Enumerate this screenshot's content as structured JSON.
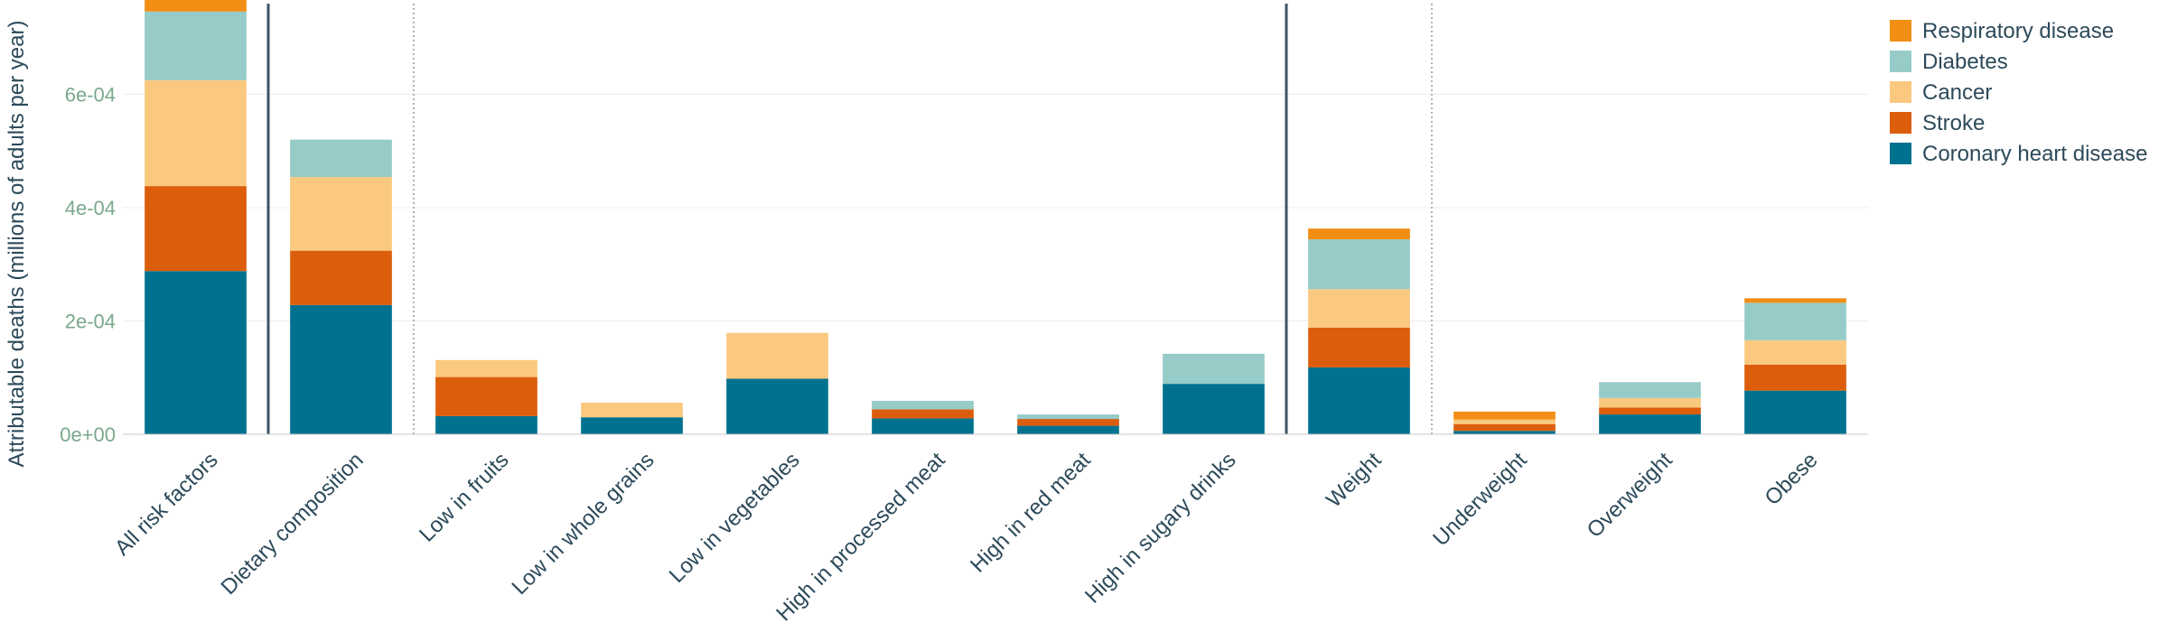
{
  "chart_data": {
    "type": "bar",
    "stacked": true,
    "ylabel": "Attributable deaths (millions of adults per year)",
    "ylim": [
      0,
      0.00076
    ],
    "yticks": [
      {
        "value": 0,
        "label": "0e+00"
      },
      {
        "value": 0.0002,
        "label": "2e-04"
      },
      {
        "value": 0.0004,
        "label": "4e-04"
      },
      {
        "value": 0.0006,
        "label": "6e-04"
      }
    ],
    "grid": true,
    "legend_position": "right",
    "categories": [
      "All risk factors",
      "Dietary composition",
      "Low in fruits",
      "Low in whole grains",
      "Low in vegetables",
      "High in processed meat",
      "High in red meat",
      "High in sugary drinks",
      "Weight",
      "Underweight",
      "Overweight",
      "Obese"
    ],
    "group_separators": [
      {
        "after_index": 0,
        "style": "solid"
      },
      {
        "after_index": 1,
        "style": "dotted"
      },
      {
        "after_index": 7,
        "style": "solid"
      },
      {
        "after_index": 8,
        "style": "dotted"
      }
    ],
    "series": [
      {
        "name": "Coronary heart disease",
        "color": "#00728f",
        "values": [
          0.000288,
          0.000228,
          3.2e-05,
          3e-05,
          9.8e-05,
          2.8e-05,
          1.5e-05,
          8.9e-05,
          0.000118,
          6e-06,
          3.5e-05,
          7.7e-05
        ]
      },
      {
        "name": "Stroke",
        "color": "#dc5e0c",
        "values": [
          0.00015,
          9.6e-05,
          6.9e-05,
          0.0,
          0.0,
          1.6e-05,
          1.2e-05,
          0.0,
          7e-05,
          1.2e-05,
          1.2e-05,
          4.6e-05
        ]
      },
      {
        "name": "Cancer",
        "color": "#fac97f",
        "values": [
          0.000187,
          0.00013,
          3e-05,
          2.6e-05,
          8.1e-05,
          0.0,
          0.0,
          0.0,
          6.8e-05,
          8e-06,
          1.7e-05,
          4.3e-05
        ]
      },
      {
        "name": "Diabetes",
        "color": "#96cbc8",
        "values": [
          0.000121,
          6.6e-05,
          0.0,
          0.0,
          0.0,
          1.5e-05,
          8e-06,
          5.3e-05,
          8.8e-05,
          0.0,
          2.8e-05,
          6.6e-05
        ]
      },
      {
        "name": "Respiratory disease",
        "color": "#f28e14",
        "values": [
          2.6e-05,
          0.0,
          0.0,
          0.0,
          0.0,
          0.0,
          0.0,
          0.0,
          1.9e-05,
          1.4e-05,
          0.0,
          8e-06
        ]
      }
    ],
    "legend_order": [
      "Respiratory disease",
      "Diabetes",
      "Cancer",
      "Stroke",
      "Coronary heart disease"
    ]
  }
}
